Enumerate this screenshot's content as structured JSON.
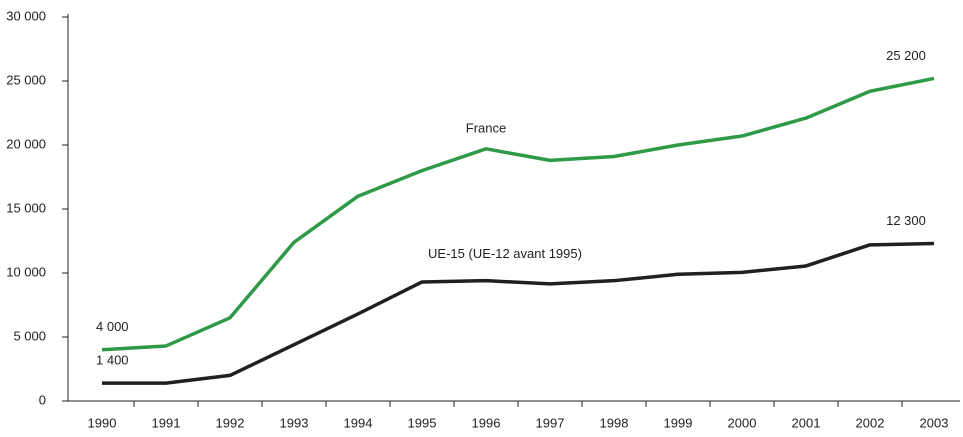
{
  "chart_data": {
    "type": "line",
    "categories": [
      "1990",
      "1991",
      "1992",
      "1993",
      "1994",
      "1995",
      "1996",
      "1997",
      "1998",
      "1999",
      "2000",
      "2001",
      "2002",
      "2003"
    ],
    "series": [
      {
        "name": "France",
        "color": "#2e9a47",
        "values": [
          4000,
          4300,
          6500,
          12400,
          16000,
          18000,
          19700,
          18800,
          19100,
          20000,
          20700,
          22100,
          24200,
          25200
        ],
        "value_labels": [
          "4 000",
          null,
          null,
          null,
          null,
          null,
          null,
          null,
          null,
          null,
          null,
          null,
          null,
          "25 200"
        ]
      },
      {
        "name": "UE-15 (UE-12 avant 1995)",
        "color": "#231f20",
        "values": [
          1400,
          1400,
          2000,
          4400,
          6800,
          9300,
          9400,
          9150,
          9400,
          9900,
          10050,
          10550,
          12200,
          12300
        ],
        "value_labels": [
          "1 400",
          null,
          null,
          null,
          null,
          null,
          null,
          null,
          null,
          null,
          null,
          null,
          null,
          "12 300"
        ]
      }
    ],
    "ylim": [
      0,
      30000
    ],
    "yticks": [
      0,
      {
        "value": 5000,
        "label": "5 000"
      },
      {
        "value": 10000,
        "label": "10 000"
      },
      {
        "value": 15000,
        "label": "15 000"
      },
      {
        "value": 20000,
        "label": "20 000"
      },
      {
        "value": 25000,
        "label": "25 000"
      },
      {
        "value": 30000,
        "label": "30 000"
      }
    ],
    "grid": false
  }
}
